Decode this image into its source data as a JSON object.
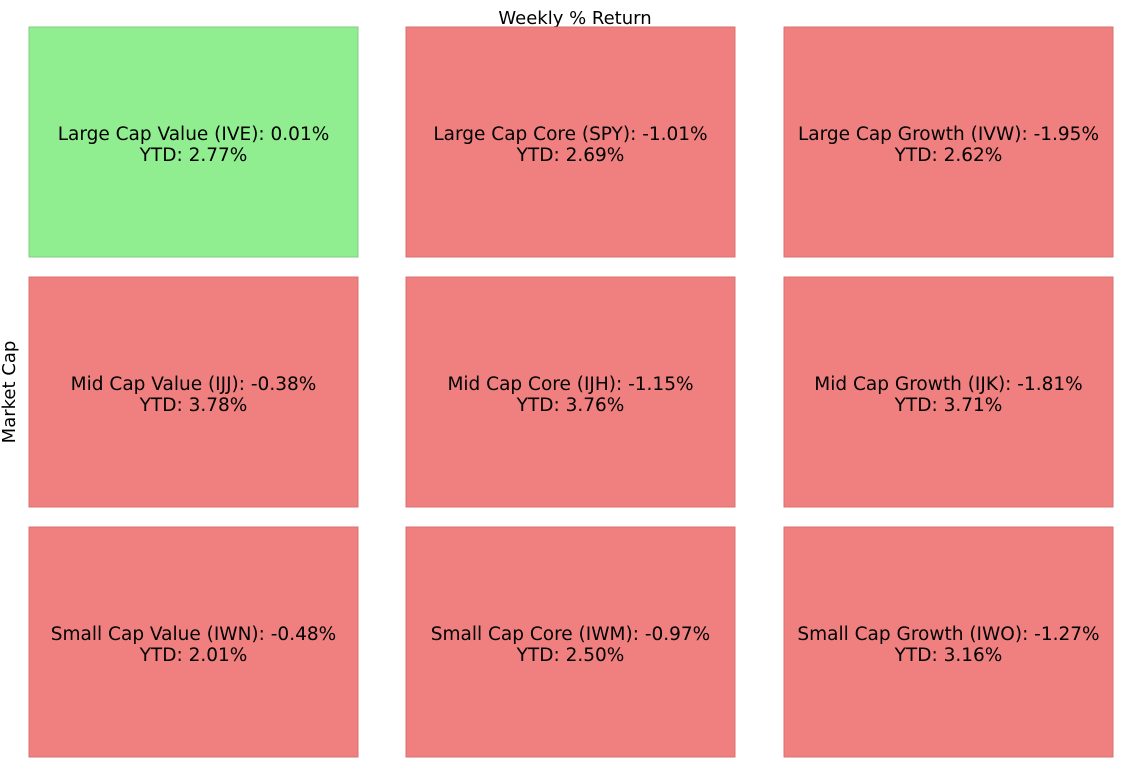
{
  "chart_data": {
    "type": "heatmap",
    "title": "Weekly % Return",
    "ylabel": "Market Cap",
    "xlabel": "",
    "grid": false,
    "colors": {
      "positive": "#90ee90",
      "negative": "#f08080"
    },
    "cells": [
      {
        "row": 0,
        "col": 0,
        "label": "Large Cap Value (IVE): 0.01%",
        "ytd_label": "YTD: 2.77%",
        "weekly_return": 0.01,
        "ytd": 2.77
      },
      {
        "row": 0,
        "col": 1,
        "label": "Large Cap Core (SPY): -1.01%",
        "ytd_label": "YTD: 2.69%",
        "weekly_return": -1.01,
        "ytd": 2.69
      },
      {
        "row": 0,
        "col": 2,
        "label": "Large Cap Growth (IVW): -1.95%",
        "ytd_label": "YTD: 2.62%",
        "weekly_return": -1.95,
        "ytd": 2.62
      },
      {
        "row": 1,
        "col": 0,
        "label": "Mid Cap Value (IJJ): -0.38%",
        "ytd_label": "YTD: 3.78%",
        "weekly_return": -0.38,
        "ytd": 3.78
      },
      {
        "row": 1,
        "col": 1,
        "label": "Mid Cap Core (IJH): -1.15%",
        "ytd_label": "YTD: 3.76%",
        "weekly_return": -1.15,
        "ytd": 3.76
      },
      {
        "row": 1,
        "col": 2,
        "label": "Mid Cap Growth (IJK): -1.81%",
        "ytd_label": "YTD: 3.71%",
        "weekly_return": -1.81,
        "ytd": 3.71
      },
      {
        "row": 2,
        "col": 0,
        "label": "Small Cap Value (IWN): -0.48%",
        "ytd_label": "YTD: 2.01%",
        "weekly_return": -0.48,
        "ytd": 2.01
      },
      {
        "row": 2,
        "col": 1,
        "label": "Small Cap Core (IWM): -0.97%",
        "ytd_label": "YTD: 2.50%",
        "weekly_return": -0.97,
        "ytd": 2.5
      },
      {
        "row": 2,
        "col": 2,
        "label": "Small Cap Growth (IWO): -1.27%",
        "ytd_label": "YTD: 3.16%",
        "weekly_return": -1.27,
        "ytd": 3.16
      }
    ]
  }
}
